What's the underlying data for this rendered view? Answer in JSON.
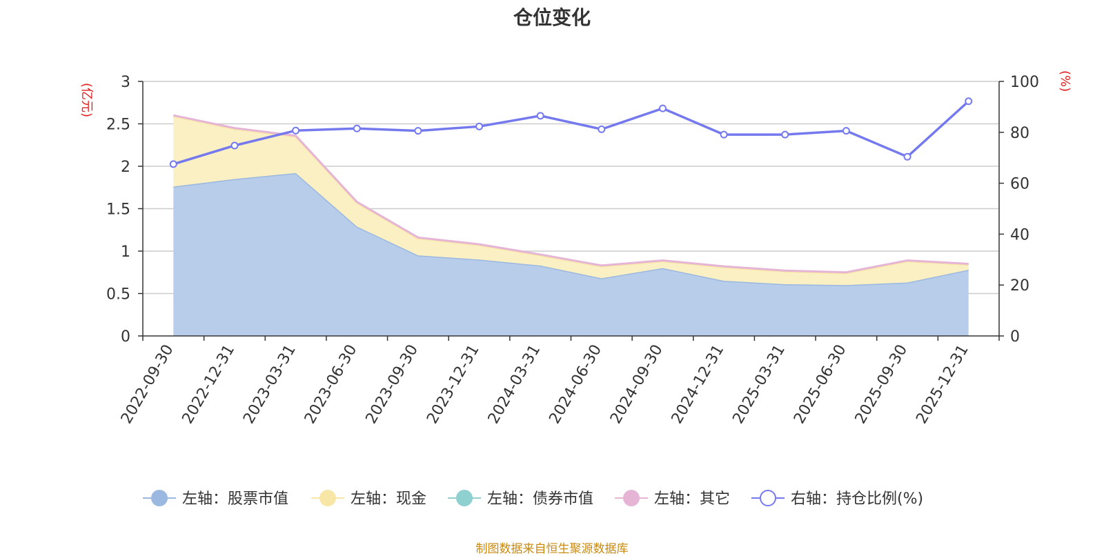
{
  "chart_data": {
    "type": "area",
    "title": "仓位变化",
    "left_axis_unit": "(亿元)",
    "right_axis_unit": "(%)",
    "categories": [
      "2022-09-30",
      "2022-12-31",
      "2023-03-31",
      "2023-06-30",
      "2023-09-30",
      "2023-12-31",
      "2024-03-31",
      "2024-06-30",
      "2024-09-30",
      "2024-12-31",
      "2025-03-31",
      "2025-06-30",
      "2025-09-30",
      "2025-12-31"
    ],
    "left_axis": {
      "min": 0,
      "max": 3,
      "ticks": [
        "0",
        "0.5",
        "1",
        "1.5",
        "2",
        "2.5",
        "3"
      ],
      "tick_values": [
        0,
        0.5,
        1,
        1.5,
        2,
        2.5,
        3
      ]
    },
    "right_axis": {
      "min": 0,
      "max": 100,
      "ticks": [
        "0",
        "20",
        "40",
        "60",
        "80",
        "100"
      ],
      "tick_values": [
        0,
        20,
        40,
        60,
        80,
        100
      ]
    },
    "series": [
      {
        "name": "左轴：股票市值",
        "axis": "left",
        "stack": true,
        "color": "#9bb8e0",
        "fill": "#b8cdea",
        "values": [
          1.76,
          1.85,
          1.92,
          1.29,
          0.95,
          0.9,
          0.83,
          0.68,
          0.8,
          0.65,
          0.61,
          0.6,
          0.63,
          0.78
        ]
      },
      {
        "name": "左轴：现金",
        "axis": "left",
        "stack": true,
        "color": "#f7e6a6",
        "fill": "#fbf0c4",
        "values": [
          0.83,
          0.59,
          0.43,
          0.28,
          0.2,
          0.17,
          0.12,
          0.14,
          0.08,
          0.16,
          0.15,
          0.14,
          0.25,
          0.06
        ]
      },
      {
        "name": "左轴：债券市值",
        "axis": "left",
        "stack": true,
        "color": "#8fd0d0",
        "fill": "#b9e3e3",
        "values": [
          0,
          0,
          0,
          0,
          0,
          0,
          0,
          0,
          0,
          0,
          0,
          0,
          0,
          0
        ]
      },
      {
        "name": "左轴：其它",
        "axis": "left",
        "stack": true,
        "color": "#e6b5d6",
        "fill": "#f0cfe5",
        "values": [
          0.01,
          0.01,
          0.01,
          0.01,
          0.01,
          0.01,
          0.01,
          0.01,
          0.01,
          0.01,
          0.01,
          0.01,
          0.01,
          0.01
        ]
      },
      {
        "name": "右轴：持仓比例(%)",
        "axis": "right",
        "color": "#7479ee",
        "values": [
          67.5,
          74.8,
          80.7,
          81.5,
          80.6,
          82.3,
          86.5,
          81.2,
          89.4,
          79.1,
          79.1,
          80.6,
          70.4,
          92.2
        ]
      }
    ],
    "legend_position": "bottom",
    "grid": true
  },
  "source_text": "制图数据来自恒生聚源数据库"
}
